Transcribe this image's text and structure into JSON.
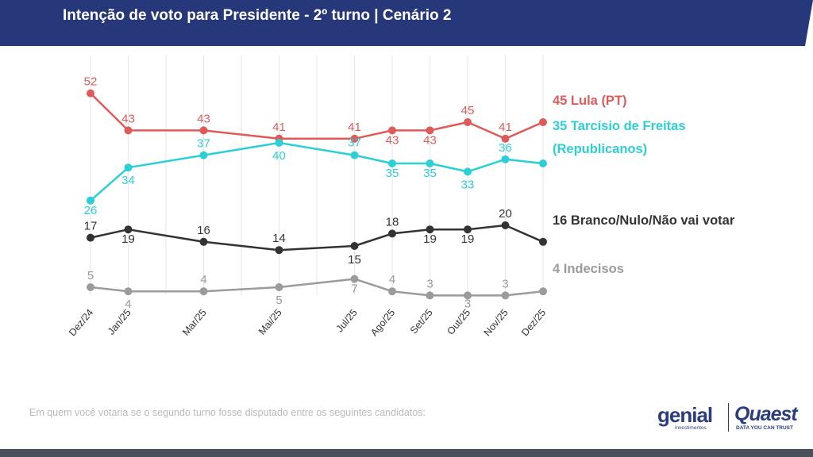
{
  "header": {
    "title": "Intenção de voto para Presidente - 2º turno | Cenário 2",
    "background": "#26377a"
  },
  "footnote": "Em quem você votaria se o segundo turno fosse disputado entre os seguintes candidatos:",
  "logos": {
    "genial": "genial",
    "genial_sub": "investimentos",
    "quaest": "Quaest",
    "quaest_sub": "DATA YOU CAN TRUST"
  },
  "chart_data": {
    "type": "line",
    "title": "Intenção de voto para Presidente - 2º turno | Cenário 2",
    "xlabel": "",
    "ylabel": "",
    "grid": "vertical",
    "categories": [
      "Dez/24",
      "Jan/25",
      "Mar/25",
      "Mai/25",
      "Jul/25",
      "Ago/25",
      "Set/25",
      "Out/25",
      "Nov/25",
      "Dez/25"
    ],
    "x_month_index": [
      0,
      1,
      3,
      5,
      7,
      8,
      9,
      10,
      11,
      12
    ],
    "series": [
      {
        "name": "Lula (PT)",
        "end_label": "45 Lula (PT)",
        "color": "#e05a5a",
        "values": [
          52,
          43,
          43,
          41,
          41,
          43,
          43,
          45,
          41,
          45
        ],
        "labels": [
          "52",
          "43",
          "43",
          "41",
          "41",
          "43",
          "43",
          "45",
          "41",
          ""
        ]
      },
      {
        "name": "Tarcísio de Freitas (Republicanos)",
        "end_label_lines": [
          "35 Tarcísio de Freitas",
          "(Republicanos)"
        ],
        "color": "#2ccfd6",
        "values": [
          26,
          34,
          37,
          40,
          37,
          35,
          35,
          33,
          36,
          35
        ],
        "labels": [
          "26",
          "34",
          "37",
          "40",
          "37",
          "35",
          "35",
          "33",
          "36",
          ""
        ]
      },
      {
        "name": "Branco/Nulo/Não vai votar",
        "end_label": "16 Branco/Nulo/Não vai votar",
        "color": "#333333",
        "values": [
          17,
          19,
          16,
          14,
          15,
          18,
          19,
          19,
          20,
          16
        ],
        "labels": [
          "17",
          "19",
          "16",
          "14",
          "15",
          "18",
          "19",
          "19",
          "20",
          ""
        ]
      },
      {
        "name": "Indecisos",
        "end_label": "4 Indecisos",
        "color": "#9b9b9b",
        "values": [
          5,
          4,
          4,
          5,
          7,
          4,
          3,
          3,
          3,
          4
        ],
        "labels": [
          "5",
          "4",
          "4",
          "5",
          "7",
          "4",
          "3",
          "3",
          "3",
          ""
        ]
      }
    ]
  }
}
